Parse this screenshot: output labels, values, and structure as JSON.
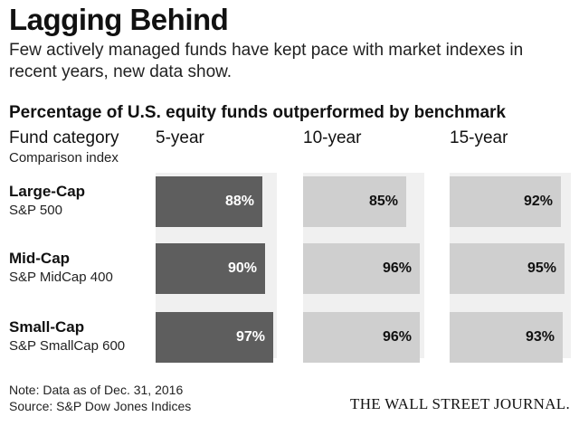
{
  "chart_data": {
    "type": "bar",
    "title": "Lagging Behind",
    "subtitle": "Few actively managed funds have kept pace with market indexes in recent years, new data show.",
    "heading": "Percentage of U.S. equity funds outperformed by benchmark",
    "column_headers": {
      "category": "Fund category",
      "index": "Comparison index"
    },
    "periods": [
      "5-year",
      "10-year",
      "15-year"
    ],
    "categories": [
      {
        "name": "Large-Cap",
        "index": "S&P 500"
      },
      {
        "name": "Mid-Cap",
        "index": "S&P MidCap 400"
      },
      {
        "name": "Small-Cap",
        "index": "S&P SmallCap 600"
      }
    ],
    "series": [
      {
        "period": "5-year",
        "values": [
          88,
          90,
          97
        ],
        "labels": [
          "88%",
          "90%",
          "97%"
        ]
      },
      {
        "period": "10-year",
        "values": [
          85,
          96,
          96
        ],
        "labels": [
          "85%",
          "96%",
          "96%"
        ]
      },
      {
        "period": "15-year",
        "values": [
          92,
          95,
          93
        ],
        "labels": [
          "92%",
          "95%",
          "93%"
        ]
      }
    ],
    "xlim": [
      0,
      100
    ],
    "colors": {
      "5-year": "#5e5e5e",
      "10-year": "#cfcfcf",
      "15-year": "#cfcfcf",
      "panel": "#f0f0f0"
    },
    "label_colors": {
      "5-year": "#ffffff",
      "10-year": "#111111",
      "15-year": "#111111"
    },
    "note": "Note: Data as of Dec. 31, 2016",
    "source": "Source: S&P Dow Jones Indices",
    "credit": "THE WALL STREET JOURNAL."
  }
}
